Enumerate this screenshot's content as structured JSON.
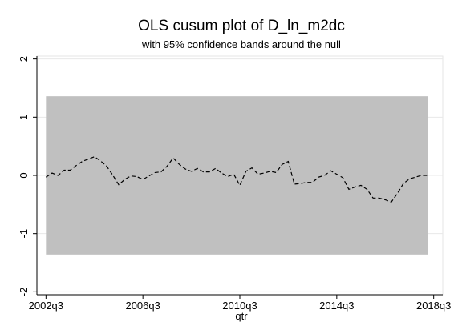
{
  "chart_data": {
    "type": "line",
    "title": "OLS cusum plot of D_ln_m2dc",
    "subtitle": "with 95% confidence bands around the null",
    "xlabel": "qtr",
    "ylabel": "",
    "x_tick_labels": [
      "2002q3",
      "2006q3",
      "2010q3",
      "2014q3",
      "2018q3"
    ],
    "x_tick_values": [
      170,
      186,
      202,
      218,
      234
    ],
    "y_tick_labels": [
      "-2",
      "-1",
      "0",
      "1",
      "2"
    ],
    "y_tick_values": [
      -2,
      -1,
      0,
      1,
      2
    ],
    "xlim": [
      168.5,
      235.5
    ],
    "ylim": [
      -2.05,
      2.05
    ],
    "grid": "horizontal",
    "legend": "none",
    "confidence_band": {
      "x_start": 170,
      "x_end": 233,
      "lower": -1.36,
      "upper": 1.36,
      "color": "#c0c0c0"
    },
    "series": [
      {
        "line_style": "dashed",
        "color": "#000000",
        "x": [
          170,
          171,
          172,
          173,
          174,
          175,
          176,
          177,
          178,
          179,
          180,
          181,
          182,
          183,
          184,
          185,
          186,
          187,
          188,
          189,
          190,
          191,
          192,
          193,
          194,
          195,
          196,
          197,
          198,
          199,
          200,
          201,
          202,
          203,
          204,
          205,
          206,
          207,
          208,
          209,
          210,
          211,
          212,
          213,
          214,
          215,
          216,
          217,
          218,
          219,
          220,
          221,
          222,
          223,
          224,
          225,
          226,
          227,
          228,
          229,
          230,
          231,
          232,
          233
        ],
        "values": [
          -0.03,
          0.04,
          0.0,
          0.09,
          0.09,
          0.17,
          0.24,
          0.28,
          0.32,
          0.25,
          0.16,
          0.01,
          -0.16,
          -0.07,
          -0.01,
          -0.02,
          -0.07,
          -0.01,
          0.05,
          0.06,
          0.16,
          0.3,
          0.19,
          0.11,
          0.07,
          0.12,
          0.06,
          0.06,
          0.12,
          0.04,
          -0.02,
          0.02,
          -0.17,
          0.07,
          0.13,
          0.02,
          0.04,
          0.07,
          0.05,
          0.19,
          0.24,
          -0.15,
          -0.14,
          -0.12,
          -0.12,
          -0.03,
          0.0,
          0.08,
          0.02,
          -0.04,
          -0.24,
          -0.2,
          -0.17,
          -0.24,
          -0.39,
          -0.39,
          -0.42,
          -0.46,
          -0.31,
          -0.14,
          -0.06,
          -0.03,
          0.0,
          0.0
        ]
      }
    ]
  }
}
